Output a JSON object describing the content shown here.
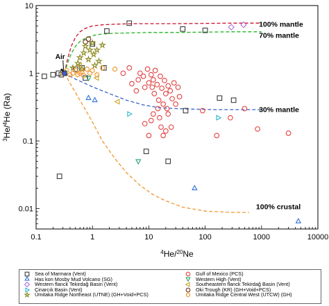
{
  "chart_data": {
    "type": "scatter",
    "xlabel": "4He/20Ne",
    "ylabel": "3He/4He (Ra)",
    "xscale": "log",
    "yscale": "log",
    "xlim": [
      0.1,
      10000
    ],
    "ylim": [
      0.005,
      10
    ],
    "x_ticks": [
      "0.1",
      "1",
      "10",
      "100",
      "1000",
      "10000"
    ],
    "y_ticks": [
      "0.01",
      "0.1",
      "1",
      "10"
    ],
    "annotations": [
      {
        "text": "100% mantle",
        "x": 900,
        "y": 5.2
      },
      {
        "text": "70% mantle",
        "x": 900,
        "y": 3.6
      },
      {
        "text": "30% mantle",
        "x": 900,
        "y": 0.285
      },
      {
        "text": "100% crustal",
        "x": 800,
        "y": 0.0105
      },
      {
        "text": "Air",
        "x": 0.22,
        "y": 1.75
      }
    ],
    "air_point": {
      "x": 0.318,
      "y": 1.0
    },
    "mixing_curves": [
      {
        "label": "100% mantle",
        "color": "#c8102e",
        "x": [
          0.318,
          0.36,
          0.42,
          0.5,
          0.6,
          0.75,
          1,
          1.5,
          2.5,
          5,
          10,
          30,
          100,
          300,
          1000
        ],
        "y": [
          1.0,
          1.6,
          2.5,
          3.4,
          4.1,
          4.6,
          5.0,
          5.2,
          5.3,
          5.4,
          5.4,
          5.4,
          5.45,
          5.5,
          5.5
        ]
      },
      {
        "label": "70% mantle",
        "color": "#22b322",
        "x": [
          0.318,
          0.36,
          0.42,
          0.5,
          0.6,
          0.75,
          1,
          1.5,
          2.5,
          5,
          10,
          30,
          100,
          300,
          1000
        ],
        "y": [
          1.0,
          1.4,
          1.95,
          2.5,
          2.95,
          3.3,
          3.6,
          3.8,
          3.9,
          3.95,
          4.0,
          4.0,
          4.05,
          4.1,
          4.1
        ]
      },
      {
        "label": "30% mantle",
        "color": "#3a63c8",
        "x": [
          0.318,
          0.5,
          1,
          2,
          4,
          8,
          15,
          30,
          60,
          150,
          400,
          1000
        ],
        "y": [
          1.0,
          0.82,
          0.63,
          0.5,
          0.4,
          0.34,
          0.31,
          0.3,
          0.295,
          0.29,
          0.29,
          0.29
        ]
      },
      {
        "label": "100% crustal",
        "color": "#f0962e",
        "x": [
          0.318,
          0.45,
          0.7,
          1,
          1.5,
          2.5,
          4,
          7,
          12,
          20,
          40,
          100,
          300,
          600
        ],
        "y": [
          1.0,
          0.6,
          0.32,
          0.19,
          0.1,
          0.055,
          0.034,
          0.022,
          0.016,
          0.013,
          0.0105,
          0.0092,
          0.0088,
          0.0088
        ]
      }
    ],
    "series": [
      {
        "name": "Sea of Marmara (Vent)",
        "marker": "square",
        "color": "#3a3a3a",
        "points": [
          [
            0.14,
            0.9
          ],
          [
            0.2,
            0.95
          ],
          [
            0.25,
            1.0
          ],
          [
            0.28,
            0.95
          ],
          [
            0.32,
            1.0
          ],
          [
            0.5,
            1.15
          ],
          [
            0.65,
            1.2
          ],
          [
            0.75,
            0.85
          ],
          [
            1.0,
            2.7
          ],
          [
            1.6,
            1.2
          ],
          [
            1.8,
            4.2
          ],
          [
            4.5,
            5.5
          ],
          [
            9.0,
            0.07
          ],
          [
            22,
            0.05
          ],
          [
            40,
            4.5
          ],
          [
            45,
            0.28
          ],
          [
            100,
            4.3
          ],
          [
            180,
            0.43
          ],
          [
            320,
            0.4
          ],
          [
            0.26,
            0.03
          ]
        ]
      },
      {
        "name": "Gulf of Mexico (PCS)",
        "marker": "circle",
        "color": "#e34040",
        "points": [
          [
            3.5,
            1.0
          ],
          [
            4.5,
            1.2
          ],
          [
            5,
            0.7
          ],
          [
            6,
            0.55
          ],
          [
            6.5,
            0.8
          ],
          [
            7,
            1.0
          ],
          [
            8,
            0.9
          ],
          [
            8.5,
            0.62
          ],
          [
            9.5,
            1.15
          ],
          [
            10,
            0.72
          ],
          [
            11,
            0.95
          ],
          [
            11.5,
            0.62
          ],
          [
            12,
            0.8
          ],
          [
            12.5,
            0.5
          ],
          [
            13,
            1.1
          ],
          [
            14,
            0.68
          ],
          [
            15,
            0.4
          ],
          [
            16,
            0.9
          ],
          [
            17,
            0.6
          ],
          [
            18,
            0.35
          ],
          [
            19,
            0.78
          ],
          [
            20,
            0.5
          ],
          [
            21,
            0.3
          ],
          [
            22,
            0.65
          ],
          [
            24,
            0.55
          ],
          [
            26,
            0.42
          ],
          [
            28,
            0.72
          ],
          [
            30,
            0.35
          ],
          [
            33,
            0.62
          ],
          [
            35,
            0.45
          ],
          [
            14.5,
            0.3
          ],
          [
            15.5,
            0.22
          ],
          [
            16.5,
            0.16
          ],
          [
            18,
            0.12
          ],
          [
            20,
            0.14
          ],
          [
            22,
            0.25
          ],
          [
            25,
            0.16
          ],
          [
            8.5,
            0.18
          ],
          [
            10,
            0.12
          ],
          [
            12,
            0.25
          ],
          [
            90,
            0.28
          ],
          [
            160,
            0.12
          ],
          [
            280,
            0.22
          ],
          [
            500,
            0.3
          ],
          [
            850,
            0.15
          ],
          [
            3000,
            0.13
          ],
          [
            11,
            0.2
          ]
        ]
      },
      {
        "name": "Has kon Mosby Mud Volcano (SG)",
        "marker": "triangle-up",
        "color": "#2f6fd6",
        "points": [
          [
            0.85,
            0.43
          ],
          [
            1.1,
            0.4
          ],
          [
            65,
            0.02
          ],
          [
            4500,
            0.0065
          ]
        ]
      },
      {
        "name": "Western High (Vent)",
        "marker": "triangle-down",
        "color": "#2aa36b",
        "points": [
          [
            6.5,
            0.05
          ],
          [
            0.85,
            0.85
          ]
        ]
      },
      {
        "name": "Western flanck Tekirdağ Basin (Vent)",
        "marker": "diamond",
        "color": "#b46cd6",
        "points": [
          [
            290,
            4.8
          ],
          [
            480,
            5.2
          ]
        ]
      },
      {
        "name": "Southeastern flanck Tekirdağ Basin (Vent)",
        "marker": "triangle-left",
        "color": "#c9a227",
        "points": [
          [
            0.6,
            1.3
          ],
          [
            1.2,
            0.85
          ],
          [
            2.8,
            0.38
          ]
        ]
      },
      {
        "name": "Çinarcık Basin (Vent)",
        "marker": "triangle-right",
        "color": "#27b5c9",
        "points": [
          [
            4.5,
            0.25
          ],
          [
            170,
            0.22
          ]
        ]
      },
      {
        "name": "Oki Trough (KR) (GH+Void+PCS)",
        "marker": "circle",
        "color": "#6b2a12",
        "points": [
          [
            0.75,
            2.9
          ],
          [
            0.85,
            3.2
          ]
        ]
      },
      {
        "name": "Umitaka Ridge Northeast (UTNE) (GH+Void+PCS)",
        "marker": "star",
        "color": "#8a8a20",
        "points": [
          [
            0.45,
            1.2
          ],
          [
            0.55,
            1.4
          ],
          [
            0.6,
            1.7
          ],
          [
            0.7,
            2.0
          ],
          [
            0.75,
            2.5
          ],
          [
            0.85,
            1.6
          ],
          [
            0.9,
            2.2
          ],
          [
            1.0,
            2.8
          ],
          [
            1.05,
            1.9
          ],
          [
            1.2,
            2.2
          ],
          [
            1.3,
            1.5
          ],
          [
            1.5,
            2.6
          ],
          [
            0.65,
            1.15
          ],
          [
            1.1,
            1.3
          ]
        ]
      },
      {
        "name": "Umitaka Ridge Central West (UTCW) (GH)",
        "marker": "hexagon",
        "color": "#f0962e",
        "points": [
          [
            0.3,
            1.0
          ],
          [
            0.35,
            1.1
          ],
          [
            0.4,
            0.95
          ],
          [
            0.45,
            1.0
          ],
          [
            0.5,
            1.1
          ],
          [
            0.55,
            0.95
          ],
          [
            0.6,
            1.0
          ],
          [
            0.65,
            1.05
          ],
          [
            0.7,
            0.92
          ],
          [
            0.8,
            1.15
          ],
          [
            0.9,
            1.0
          ],
          [
            1.0,
            1.1
          ],
          [
            1.2,
            0.95
          ],
          [
            1.5,
            1.2
          ],
          [
            2.5,
            1.15
          ]
        ]
      }
    ],
    "legend_position": "bottom"
  }
}
